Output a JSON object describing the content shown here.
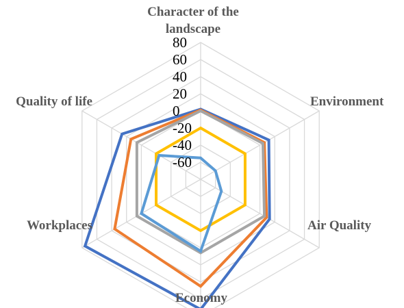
{
  "chart_data": {
    "type": "radar",
    "axes": [
      "Character of the landscape",
      "Environment",
      "Air Quality",
      "Economy",
      "Workplaces",
      "Quality of life"
    ],
    "axis_label_lines": [
      [
        "Character of the",
        "landscape"
      ],
      [
        "Environment"
      ],
      [
        "Air Quality"
      ],
      [
        "Economy"
      ],
      [
        "Workplaces"
      ],
      [
        "Quality of life"
      ]
    ],
    "ticks": [
      "-60",
      "-40",
      "-20",
      "0",
      "20",
      "40",
      "60",
      "80"
    ],
    "range": [
      -80,
      80
    ],
    "grid": true,
    "gridline_color": "#d9d9d9",
    "series": [
      {
        "color": "#4472c4",
        "values": [
          2,
          12,
          13,
          72,
          76,
          26
        ]
      },
      {
        "color": "#ed7d31",
        "values": [
          1,
          6,
          9,
          45,
          36,
          14
        ]
      },
      {
        "color": "#a5a5a5",
        "values": [
          0,
          4,
          6,
          6,
          6,
          6
        ]
      },
      {
        "color": "#ffc000",
        "values": [
          -20,
          -20,
          -20,
          -20,
          -20,
          -20
        ]
      },
      {
        "color": "#5b9bd5",
        "values": [
          -55,
          -60,
          -52,
          4,
          0,
          -24
        ]
      }
    ]
  }
}
